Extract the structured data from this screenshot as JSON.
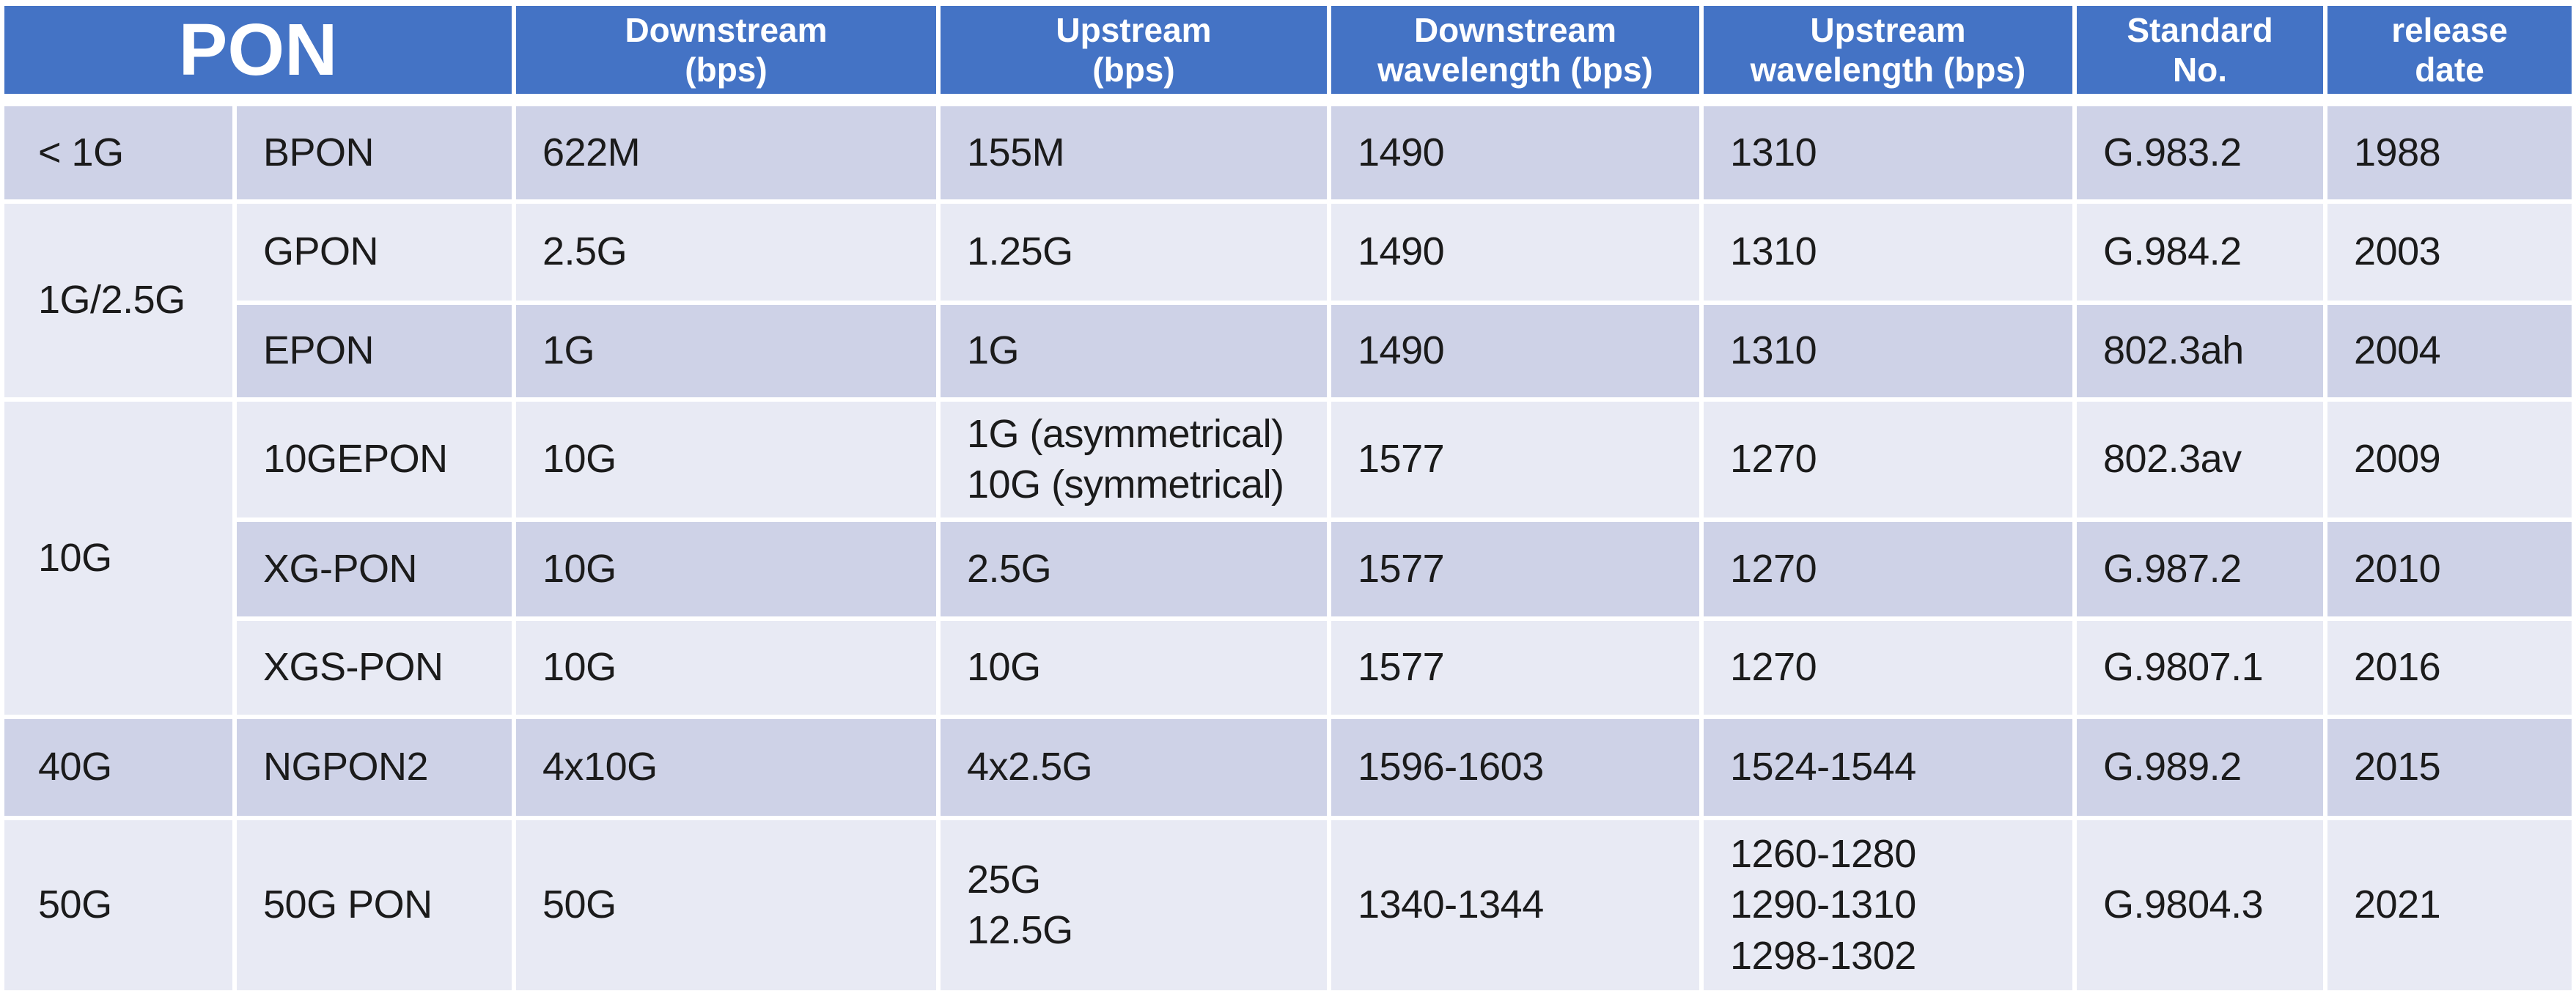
{
  "colors": {
    "header_bg": "#4473C5",
    "row_dark": "#CED2E7",
    "row_light": "#E8EAF4",
    "header_text": "#FFFFFF",
    "body_text": "#1B1B1B"
  },
  "header": {
    "title": "PON",
    "columns": [
      "Downstream\n(bps)",
      "Upstream\n(bps)",
      "Downstream\nwavelength (bps)",
      "Upstream\nwavelength (bps)",
      "Standard\nNo.",
      "release\ndate"
    ]
  },
  "groups": [
    {
      "label": "< 1G",
      "rowspan": 1
    },
    {
      "label": "1G/2.5G",
      "rowspan": 2
    },
    {
      "label": "10G",
      "rowspan": 3
    },
    {
      "label": "40G",
      "rowspan": 1
    },
    {
      "label": "50G",
      "rowspan": 1
    }
  ],
  "rows": [
    {
      "name": "BPON",
      "downstream": "622M",
      "upstream": "155M",
      "downstream_wavelength": "1490",
      "upstream_wavelength": "1310",
      "standard_no": "G.983.2",
      "release_date": "1988"
    },
    {
      "name": "GPON",
      "downstream": "2.5G",
      "upstream": "1.25G",
      "downstream_wavelength": "1490",
      "upstream_wavelength": "1310",
      "standard_no": "G.984.2",
      "release_date": "2003"
    },
    {
      "name": "EPON",
      "downstream": "1G",
      "upstream": "1G",
      "downstream_wavelength": "1490",
      "upstream_wavelength": "1310",
      "standard_no": "802.3ah",
      "release_date": "2004"
    },
    {
      "name": "10GEPON",
      "downstream": "10G",
      "upstream": "1G (asymmetrical)\n10G (symmetrical)",
      "downstream_wavelength": "1577",
      "upstream_wavelength": "1270",
      "standard_no": "802.3av",
      "release_date": "2009"
    },
    {
      "name": "XG-PON",
      "downstream": "10G",
      "upstream": "2.5G",
      "downstream_wavelength": "1577",
      "upstream_wavelength": "1270",
      "standard_no": "G.987.2",
      "release_date": "2010"
    },
    {
      "name": "XGS-PON",
      "downstream": "10G",
      "upstream": "10G",
      "downstream_wavelength": "1577",
      "upstream_wavelength": "1270",
      "standard_no": "G.9807.1",
      "release_date": "2016"
    },
    {
      "name": "NGPON2",
      "downstream": "4x10G",
      "upstream": "4x2.5G",
      "downstream_wavelength": "1596-1603",
      "upstream_wavelength": "1524-1544",
      "standard_no": "G.989.2",
      "release_date": "2015"
    },
    {
      "name": "50G PON",
      "downstream": "50G",
      "upstream": "25G\n12.5G",
      "downstream_wavelength": "1340-1344",
      "upstream_wavelength": "1260-1280\n1290-1310\n1298-1302",
      "standard_no": "G.9804.3",
      "release_date": "2021"
    }
  ]
}
